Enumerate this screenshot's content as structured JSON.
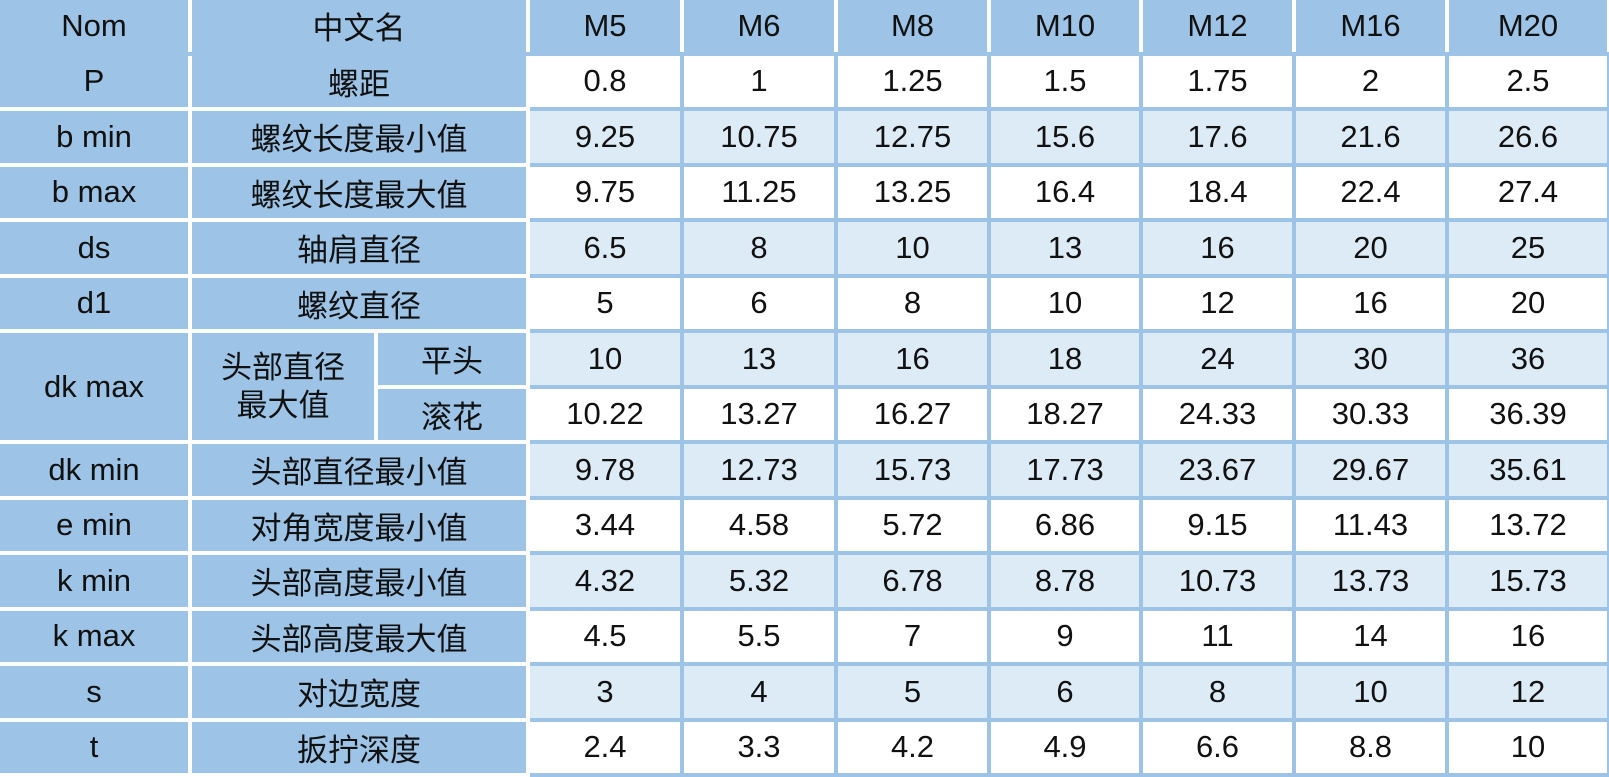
{
  "header": {
    "nom": "Nom",
    "cn": "中文名",
    "sizes": [
      "M5",
      "M6",
      "M8",
      "M10",
      "M12",
      "M16",
      "M20"
    ]
  },
  "rows": [
    {
      "nom": "P",
      "cn": "螺距",
      "values": [
        "0.8",
        "1",
        "1.25",
        "1.5",
        "1.75",
        "2",
        "2.5"
      ]
    },
    {
      "nom": "b min",
      "cn": "螺纹长度最小值",
      "values": [
        "9.25",
        "10.75",
        "12.75",
        "15.6",
        "17.6",
        "21.6",
        "26.6"
      ]
    },
    {
      "nom": "b max",
      "cn": "螺纹长度最大值",
      "values": [
        "9.75",
        "11.25",
        "13.25",
        "16.4",
        "18.4",
        "22.4",
        "27.4"
      ]
    },
    {
      "nom": "ds",
      "cn": "轴肩直径",
      "values": [
        "6.5",
        "8",
        "10",
        "13",
        "16",
        "20",
        "25"
      ]
    },
    {
      "nom": "d1",
      "cn": "螺纹直径",
      "values": [
        "5",
        "6",
        "8",
        "10",
        "12",
        "16",
        "20"
      ]
    }
  ],
  "dkmax": {
    "nom": "dk max",
    "cn_line1": "头部直径",
    "cn_line2": "最大值",
    "flat": {
      "label": "平头",
      "values": [
        "10",
        "13",
        "16",
        "18",
        "24",
        "30",
        "36"
      ]
    },
    "knurled": {
      "label": "滚花",
      "values": [
        "10.22",
        "13.27",
        "16.27",
        "18.27",
        "24.33",
        "30.33",
        "36.39"
      ]
    }
  },
  "rows2": [
    {
      "nom": "dk min",
      "cn": "头部直径最小值",
      "values": [
        "9.78",
        "12.73",
        "15.73",
        "17.73",
        "23.67",
        "29.67",
        "35.61"
      ]
    },
    {
      "nom": "e min",
      "cn": "对角宽度最小值",
      "values": [
        "3.44",
        "4.58",
        "5.72",
        "6.86",
        "9.15",
        "11.43",
        "13.72"
      ]
    },
    {
      "nom": "k min",
      "cn": "头部高度最小值",
      "values": [
        "4.32",
        "5.32",
        "6.78",
        "8.78",
        "10.73",
        "13.73",
        "15.73"
      ]
    },
    {
      "nom": "k max",
      "cn": "头部高度最大值",
      "values": [
        "4.5",
        "5.5",
        "7",
        "9",
        "11",
        "14",
        "16"
      ]
    },
    {
      "nom": "s",
      "cn": "对边宽度",
      "values": [
        "3",
        "4",
        "5",
        "6",
        "8",
        "10",
        "12"
      ]
    },
    {
      "nom": "t",
      "cn": "扳拧深度",
      "values": [
        "2.4",
        "3.3",
        "4.2",
        "4.9",
        "6.6",
        "8.8",
        "10"
      ]
    }
  ],
  "colors": {
    "label_bg": "#9dc3e6",
    "band_bg": "#ddebf7",
    "white": "#ffffff"
  }
}
